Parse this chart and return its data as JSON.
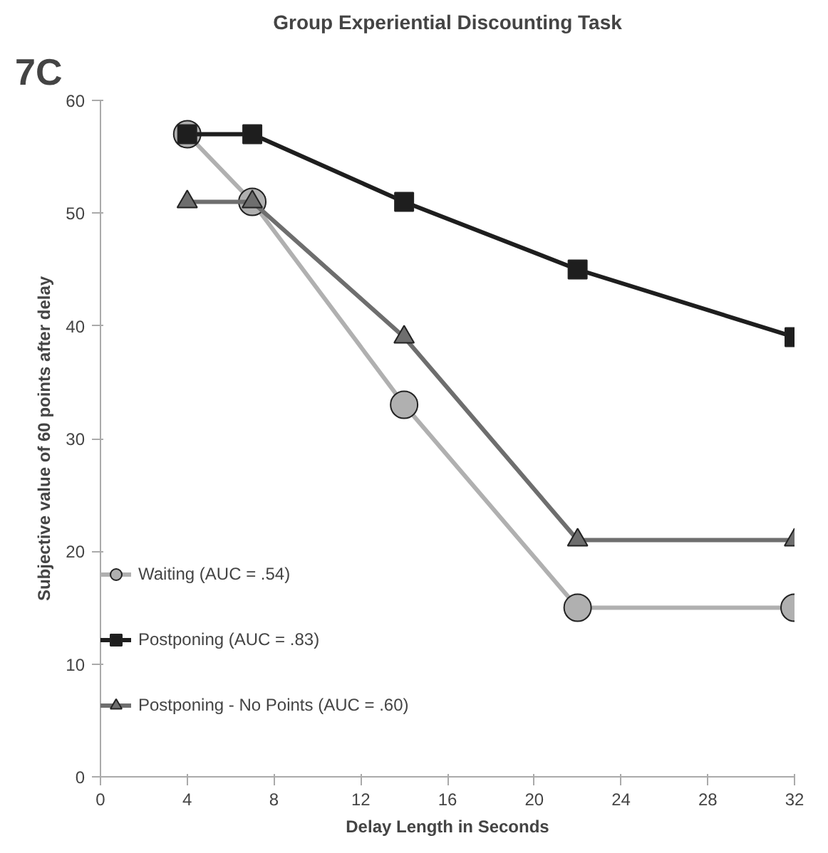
{
  "chart_data": {
    "type": "line",
    "title": "Group Experiential Discounting Task",
    "xlabel": "Delay Length in Seconds",
    "ylabel": "Subjective value of 60 points after delay",
    "annotations": [
      "7C"
    ],
    "x": [
      4,
      7,
      14,
      22,
      32
    ],
    "series": [
      {
        "name": "Waiting (AUC = .54)",
        "color": "#b0b0b0",
        "marker": "circle",
        "values": [
          57,
          51,
          33,
          15,
          15
        ]
      },
      {
        "name": "Postponing (AUC = .83)",
        "color": "#1e1e1e",
        "marker": "square",
        "values": [
          57,
          57,
          51,
          45,
          39
        ]
      },
      {
        "name": "Postponing - No Points (AUC = .60)",
        "color": "#6e6e6e",
        "marker": "triangle",
        "values": [
          51,
          51,
          39,
          21,
          21
        ]
      }
    ],
    "xlim": [
      0,
      32
    ],
    "xticks": [
      0,
      4,
      8,
      12,
      16,
      20,
      24,
      28,
      32
    ],
    "ylim": [
      0,
      60
    ],
    "yticks": [
      0,
      10,
      20,
      30,
      40,
      50,
      60
    ],
    "grid": false,
    "legend": "bottom left",
    "line_style": "solid"
  }
}
